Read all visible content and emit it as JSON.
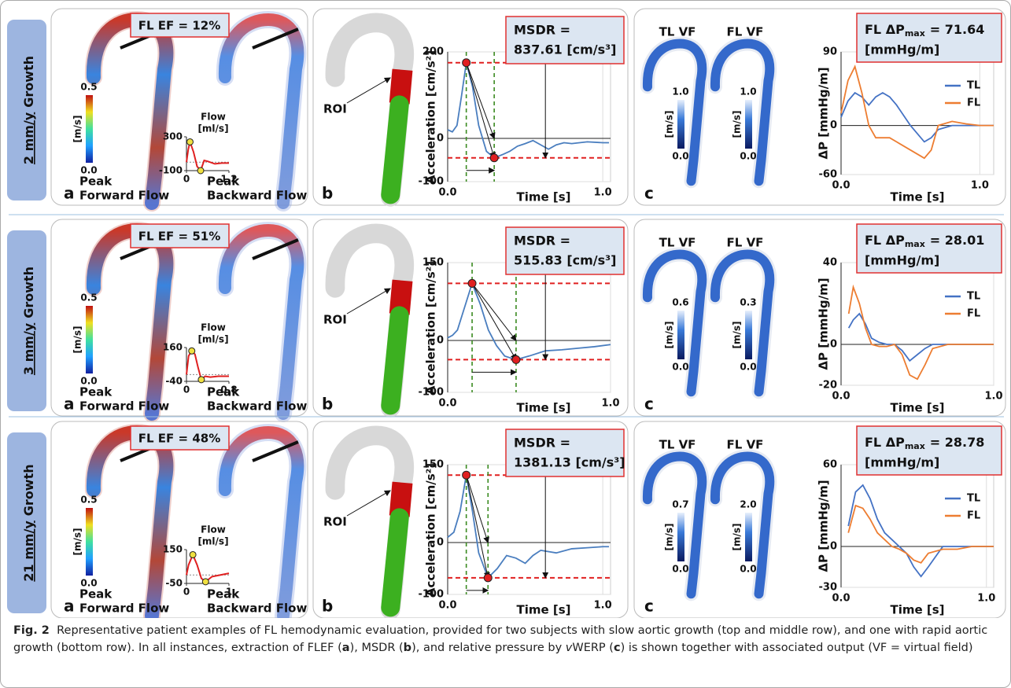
{
  "rows": [
    {
      "label": [
        "2 mm/y",
        "Growth"
      ],
      "panel_a": {
        "letter": "a",
        "ef": "FL EF = 12%",
        "colorbar": {
          "unit": "[m/s]",
          "ticks": [
            0.5,
            {
              "value": 0,
              "label": "0.0"
            }
          ]
        },
        "flow": {
          "title": [
            "Flow",
            "[ml/s]"
          ],
          "color": "#e02020",
          "xlim": [
            0,
            1.2
          ],
          "ylim": [
            -100,
            300
          ],
          "xticks": [
            0,
            {
              "value": 1.2,
              "label": "1,2"
            }
          ],
          "yticks": [
            300,
            -100
          ],
          "x": [
            0,
            0.05,
            0.1,
            0.2,
            0.3,
            0.4,
            0.5,
            0.6,
            0.8,
            1.0,
            1.2
          ],
          "values": [
            0,
            150,
            240,
            120,
            -50,
            -100,
            20,
            10,
            -20,
            -10,
            -10
          ]
        },
        "captions": [
          [
            "Peak",
            "Forward Flow"
          ],
          [
            "Peak",
            "Backward Flow"
          ]
        ]
      },
      "panel_b": {
        "letter": "b",
        "roi": "ROI",
        "chart": {
          "ylabel": "Acceleration [cm/s²]",
          "xlabel": "Time [s]",
          "msdr": [
            "MSDR =",
            "837.61 [cm/s³]"
          ],
          "grid": true,
          "xlim": [
            0,
            1.05
          ],
          "ylim": [
            -100,
            200
          ],
          "xticks": [
            {
              "value": 0,
              "label": "0.0"
            },
            {
              "value": 1,
              "label": "1.0"
            }
          ],
          "yticks": [
            200,
            0,
            -100
          ],
          "x": [
            0,
            0.03,
            0.06,
            0.09,
            0.12,
            0.16,
            0.2,
            0.25,
            0.3,
            0.35,
            0.4,
            0.45,
            0.5,
            0.55,
            0.6,
            0.65,
            0.7,
            0.75,
            0.8,
            0.9,
            1.0,
            1.04
          ],
          "series": [
            {
              "color": "#4a7ebf",
              "values": [
                20,
                15,
                30,
                100,
                175,
                120,
                30,
                -30,
                -45,
                -38,
                -30,
                -18,
                -12,
                -5,
                -15,
                -25,
                -15,
                -10,
                -12,
                -8,
                -10,
                -10
              ]
            }
          ]
        }
      },
      "panel_c": {
        "letter": "c",
        "fields": [
          {
            "label": "TL VF",
            "colorbar": {
              "unit": "[m/s]",
              "ticks": [
                {
                  "value": 1,
                  "label": "1.0"
                },
                {
                  "value": 0,
                  "label": "0.0"
                }
              ]
            }
          },
          {
            "label": "FL VF",
            "colorbar": {
              "unit": "[m/s]",
              "ticks": [
                {
                  "value": 1,
                  "label": "1.0"
                },
                {
                  "value": 0,
                  "label": "0.0"
                }
              ]
            }
          }
        ],
        "chart": {
          "title": [
            "FL ΔP",
            "max",
            "= 71.64",
            "[mmHg/m]"
          ],
          "ylabel": "ΔP [mmHg/m]",
          "xlabel": "Time [s]",
          "grid": true,
          "xlim": [
            0,
            1.1
          ],
          "ylim": [
            -60,
            90
          ],
          "xticks": [
            {
              "value": 0,
              "label": "0.0"
            },
            {
              "value": 1,
              "label": "1.0"
            }
          ],
          "yticks": [
            90,
            0,
            -60
          ],
          "x": [
            0,
            0.05,
            0.1,
            0.15,
            0.2,
            0.25,
            0.3,
            0.35,
            0.4,
            0.5,
            0.6,
            0.65,
            0.7,
            0.8,
            0.9,
            1.0,
            1.1
          ],
          "series": [
            {
              "name": "TL",
              "color": "#4472c4",
              "values": [
                10,
                30,
                40,
                35,
                25,
                35,
                40,
                35,
                25,
                0,
                -20,
                -15,
                -5,
                0,
                0,
                0,
                0
              ]
            },
            {
              "name": "FL",
              "color": "#ed7d31",
              "values": [
                15,
                55,
                72,
                40,
                0,
                -15,
                -15,
                -15,
                -20,
                -30,
                -40,
                -30,
                0,
                5,
                2,
                0,
                0
              ]
            }
          ]
        }
      }
    },
    {
      "label": [
        "3 mm/y",
        "Growth"
      ],
      "panel_a": {
        "letter": "a",
        "ef": "FL EF = 51%",
        "colorbar": {
          "unit": "[m/s]",
          "ticks": [
            0.5,
            {
              "value": 0,
              "label": "0.0"
            }
          ]
        },
        "flow": {
          "title": [
            "Flow",
            "[ml/s]"
          ],
          "color": "#e02020",
          "xlim": [
            0,
            0.8
          ],
          "ylim": [
            -40,
            160
          ],
          "xticks": [
            0,
            {
              "value": 0.8,
              "label": "0,8"
            }
          ],
          "yticks": [
            160,
            -40
          ],
          "x": [
            0,
            0.04,
            0.1,
            0.16,
            0.22,
            0.28,
            0.35,
            0.45,
            0.6,
            0.8
          ],
          "values": [
            0,
            110,
            140,
            120,
            40,
            -30,
            -10,
            -15,
            -10,
            -10
          ]
        },
        "captions": [
          [
            "Peak",
            "Forward Flow"
          ],
          [
            "Peak",
            "Backward Flow"
          ]
        ]
      },
      "panel_b": {
        "letter": "b",
        "roi": "ROI",
        "chart": {
          "ylabel": "Acceleration [cm/s²]",
          "xlabel": "Time [s]",
          "msdr": [
            "MSDR =",
            "515.83 [cm/s³]"
          ],
          "grid": true,
          "xlim": [
            0,
            1.0
          ],
          "ylim": [
            -100,
            150
          ],
          "xticks": [
            {
              "value": 0,
              "label": "0.0"
            },
            {
              "value": 1,
              "label": "1.0"
            }
          ],
          "yticks": [
            150,
            0,
            -100
          ],
          "x": [
            0,
            0.03,
            0.06,
            0.1,
            0.15,
            0.2,
            0.25,
            0.3,
            0.35,
            0.42,
            0.5,
            0.6,
            0.7,
            0.8,
            0.9,
            1.0
          ],
          "series": [
            {
              "color": "#4a7ebf",
              "values": [
                5,
                10,
                20,
                60,
                110,
                70,
                20,
                -10,
                -30,
                -37,
                -30,
                -20,
                -18,
                -15,
                -12,
                -8
              ]
            }
          ]
        }
      },
      "panel_c": {
        "letter": "c",
        "fields": [
          {
            "label": "TL VF",
            "colorbar": {
              "unit": "[m/s]",
              "ticks": [
                0.6,
                {
                  "value": 0,
                  "label": "0.0"
                }
              ]
            }
          },
          {
            "label": "FL VF",
            "colorbar": {
              "unit": "[m/s]",
              "ticks": [
                0.3,
                {
                  "value": 0,
                  "label": "0.0"
                }
              ]
            }
          }
        ],
        "chart": {
          "title": [
            "FL ΔP",
            "max",
            "= 28.01",
            "[mmHg/m]"
          ],
          "ylabel": "ΔP [mmHg/m]",
          "xlabel": "Time [s]",
          "grid": true,
          "xlim": [
            0,
            1.0
          ],
          "ylim": [
            -20,
            40
          ],
          "xticks": [
            {
              "value": 0,
              "label": "0.0"
            },
            {
              "value": 1,
              "label": "1.0"
            }
          ],
          "yticks": [
            40,
            0,
            -20
          ],
          "x": [
            0.05,
            0.08,
            0.12,
            0.16,
            0.2,
            0.25,
            0.3,
            0.35,
            0.4,
            0.45,
            0.5,
            0.55,
            0.6,
            0.7,
            0.8,
            0.9,
            1.0
          ],
          "series": [
            {
              "name": "TL",
              "color": "#4472c4",
              "values": [
                8,
                12,
                15,
                10,
                3,
                1,
                0,
                0,
                -3,
                -8,
                -5,
                -2,
                0,
                0,
                0,
                0,
                0
              ]
            },
            {
              "name": "FL",
              "color": "#ed7d31",
              "values": [
                15,
                28,
                20,
                8,
                0,
                -1,
                -1,
                0,
                -5,
                -15,
                -17,
                -10,
                -2,
                0,
                0,
                0,
                0
              ]
            }
          ]
        }
      }
    },
    {
      "label": [
        "21 mm/y",
        "Growth"
      ],
      "panel_a": {
        "letter": "a",
        "ef": "FL EF = 48%",
        "colorbar": {
          "unit": "[m/s]",
          "ticks": [
            0.5,
            {
              "value": 0,
              "label": "0.0"
            }
          ]
        },
        "flow": {
          "title": [
            "Flow",
            "[ml/s]"
          ],
          "color": "#e02020",
          "xlim": [
            0,
            1
          ],
          "ylim": [
            -50,
            150
          ],
          "xticks": [
            0,
            1
          ],
          "yticks": [
            150,
            -50
          ],
          "x": [
            0,
            0.05,
            0.15,
            0.25,
            0.35,
            0.45,
            0.6,
            0.8,
            1
          ],
          "values": [
            0,
            60,
            120,
            60,
            -20,
            -40,
            -10,
            0,
            10
          ]
        },
        "captions": [
          [
            "Peak",
            "Forward Flow"
          ],
          [
            "Peak",
            "Backward Flow"
          ]
        ]
      },
      "panel_b": {
        "letter": "b",
        "roi": "ROI",
        "chart": {
          "ylabel": "Acceleration [cm/s²]",
          "xlabel": "Time [s]",
          "msdr": [
            "MSDR =",
            "1381.13 [cm/s³]"
          ],
          "grid": true,
          "xlim": [
            0,
            1.05
          ],
          "ylim": [
            -100,
            150
          ],
          "xticks": [
            {
              "value": 0,
              "label": "0.0"
            },
            {
              "value": 1,
              "label": "1.0"
            }
          ],
          "yticks": [
            150,
            0,
            -100
          ],
          "x": [
            0,
            0.04,
            0.08,
            0.12,
            0.16,
            0.2,
            0.26,
            0.32,
            0.38,
            0.44,
            0.5,
            0.55,
            0.6,
            0.7,
            0.8,
            0.9,
            1.0,
            1.04
          ],
          "series": [
            {
              "color": "#4a7ebf",
              "values": [
                10,
                20,
                60,
                130,
                60,
                -20,
                -68,
                -50,
                -25,
                -30,
                -40,
                -25,
                -15,
                -20,
                -12,
                -10,
                -8,
                -8
              ]
            }
          ]
        }
      },
      "panel_c": {
        "letter": "c",
        "fields": [
          {
            "label": "TL VF",
            "colorbar": {
              "unit": "[m/s]",
              "ticks": [
                0.7,
                {
                  "value": 0,
                  "label": "0.0"
                }
              ]
            }
          },
          {
            "label": "FL VF",
            "colorbar": {
              "unit": "[m/s]",
              "ticks": [
                {
                  "value": 2,
                  "label": "2.0"
                },
                {
                  "value": 0,
                  "label": "0.0"
                }
              ]
            }
          }
        ],
        "chart": {
          "title": [
            "FL ΔP",
            "max",
            "= 28.78",
            "[mmHg/m]"
          ],
          "ylabel": "ΔP [mmHg/m]",
          "xlabel": "Time [s]",
          "grid": true,
          "xlim": [
            0,
            1.05
          ],
          "ylim": [
            -30,
            60
          ],
          "xticks": [
            {
              "value": 0,
              "label": "0.0"
            },
            {
              "value": 1,
              "label": "1.0"
            }
          ],
          "yticks": [
            60,
            0,
            -30
          ],
          "x": [
            0.05,
            0.1,
            0.15,
            0.2,
            0.25,
            0.3,
            0.35,
            0.4,
            0.45,
            0.5,
            0.55,
            0.6,
            0.7,
            0.8,
            0.9,
            1.0,
            1.05
          ],
          "series": [
            {
              "name": "TL",
              "color": "#4472c4",
              "values": [
                15,
                40,
                45,
                35,
                20,
                10,
                5,
                0,
                -5,
                -15,
                -22,
                -15,
                0,
                0,
                0,
                0,
                0
              ]
            },
            {
              "name": "FL",
              "color": "#ed7d31",
              "values": [
                10,
                30,
                28,
                20,
                10,
                5,
                0,
                -2,
                -5,
                -10,
                -12,
                -5,
                -2,
                -2,
                0,
                0,
                0
              ]
            }
          ]
        }
      }
    }
  ],
  "caption": [
    "Fig. 2",
    "Representative patient examples of FL hemodynamic evaluation, provided for two subjects with slow aortic growth (top and middle row), and one with rapid aortic growth (bottom row). In all instances, extraction of FLEF (",
    "a",
    "), MSDR (",
    "b",
    "), and relative pressure by ",
    "v",
    "WERP (",
    "c",
    ") is shown together with associated output (VF = virtual field)"
  ]
}
